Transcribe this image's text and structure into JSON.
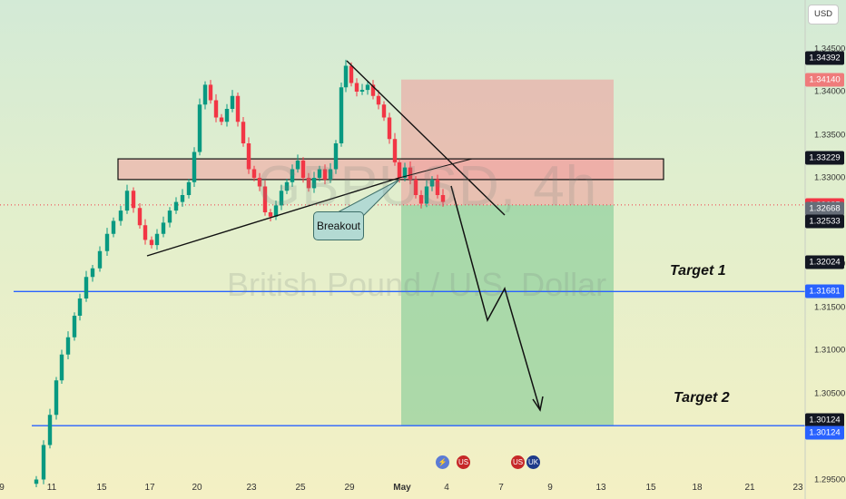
{
  "currency": "USD",
  "watermark": {
    "symbol": "GBPUSD, 4h",
    "name": "British Pound / U.S. Dollar"
  },
  "price_axis": [
    "1.34500",
    "1.34000",
    "1.33500",
    "1.33000",
    "1.32000",
    "1.31500",
    "1.31000",
    "1.30500",
    "1.29500"
  ],
  "price_tags": [
    {
      "text": "1.34392",
      "price": 1.34392,
      "color": "#131722"
    },
    {
      "text": "1.34140",
      "price": 1.3414,
      "color": "#ef7b7b"
    },
    {
      "text": "1.33229",
      "price": 1.33229,
      "color": "#131722"
    },
    {
      "text": "1.32685",
      "price": 1.32685,
      "color": "#f23645"
    },
    {
      "text": "1.32668",
      "price": 1.32668,
      "color": "#666d78"
    },
    {
      "text": "1.32533",
      "price": 1.32533,
      "color": "#131722"
    },
    {
      "text": "1.32024",
      "price": 1.32024,
      "color": "#131722"
    },
    {
      "text": "1.31681",
      "price": 1.31681,
      "color": "#2962ff"
    },
    {
      "text": "1.30124",
      "price": 1.30124,
      "color": "#131722"
    },
    {
      "text": "1.30124",
      "price": 1.30124,
      "color": "#2962ff"
    }
  ],
  "date_axis": [
    "9",
    "11",
    "15",
    "17",
    "20",
    "23",
    "25",
    "29",
    "May",
    "4",
    "7",
    "9",
    "13",
    "15",
    "18",
    "21",
    "23"
  ],
  "annotations": {
    "breakout": "Breakout",
    "target1": "Target 1",
    "target2": "Target 2"
  },
  "colors": {
    "bullish": "#089981",
    "bearish": "#f23645",
    "target_line": "#2962ff",
    "sell_zone": "#ef9a9a",
    "profit_zone": "#81c995"
  },
  "events": [
    {
      "icon": "lightning-icon",
      "glyph": "⚡",
      "color": "#5b7bd5"
    },
    {
      "icon": "us-flag-icon",
      "glyph": "US",
      "color": "#c62828"
    },
    {
      "icon": "us-flag-icon",
      "glyph": "US",
      "color": "#c62828"
    },
    {
      "icon": "uk-flag-icon",
      "glyph": "UK",
      "color": "#1e3a8a"
    }
  ],
  "chart_data": {
    "type": "candlestick",
    "symbol": "GBPUSD",
    "timeframe": "4h",
    "ylim": [
      1.2945,
      1.3465
    ],
    "resistance_zone": [
      1.3298,
      1.3322
    ],
    "short_position": {
      "entry": 1.32685,
      "stop": 1.3414,
      "target": 1.30124
    },
    "targets": [
      {
        "name": "Target 1",
        "price": 1.31681
      },
      {
        "name": "Target 2",
        "price": 1.30124
      }
    ],
    "last_price": 1.32685
  }
}
